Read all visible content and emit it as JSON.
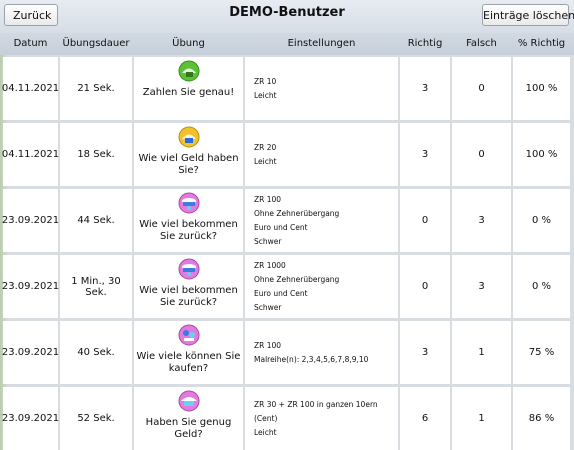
{
  "app": {
    "title": "DEMO-Benutzer",
    "back_label": "Zurück",
    "clear_label": "Einträge löschen"
  },
  "table": {
    "headers": {
      "date": "Datum",
      "duration": "Übungsdauer",
      "exercise": "Übung",
      "settings": "Einstellungen",
      "correct": "Richtig",
      "wrong": "Falsch",
      "percent": "% Richtig"
    },
    "rows": [
      {
        "date": "04.11.2021",
        "duration": "21 Sek.",
        "exercise": "Zahlen Sie genau!",
        "icon": "green-money-icon",
        "settings": [
          "ZR 10",
          "Leicht"
        ],
        "correct": "3",
        "wrong": "0",
        "percent": "100 %"
      },
      {
        "date": "04.11.2021",
        "duration": "18 Sek.",
        "exercise": "Wie viel Geld haben Sie?",
        "icon": "gold-money-icon",
        "settings": [
          "ZR 20",
          "Leicht"
        ],
        "correct": "3",
        "wrong": "0",
        "percent": "100 %"
      },
      {
        "date": "23.09.2021",
        "duration": "44 Sek.",
        "exercise": "Wie viel bekommen Sie zurück?",
        "icon": "change-money-icon",
        "settings": [
          "ZR 100",
          "Ohne Zehnerübergang",
          "Euro und Cent",
          "Schwer"
        ],
        "correct": "0",
        "wrong": "3",
        "percent": "0 %"
      },
      {
        "date": "23.09.2021",
        "duration": "1 Min., 30 Sek.",
        "exercise": "Wie viel bekommen Sie zurück?",
        "icon": "change-money-icon",
        "settings": [
          "ZR 1000",
          "Ohne Zehnerübergang",
          "Euro und Cent",
          "Schwer"
        ],
        "correct": "0",
        "wrong": "3",
        "percent": "0 %"
      },
      {
        "date": "23.09.2021",
        "duration": "40 Sek.",
        "exercise": "Wie viele können Sie kaufen?",
        "icon": "shopping-icon",
        "settings": [
          "ZR 100",
          "Malreihe(n): 2,3,4,5,6,7,8,9,10"
        ],
        "correct": "3",
        "wrong": "1",
        "percent": "75 %"
      },
      {
        "date": "23.09.2021",
        "duration": "52 Sek.",
        "exercise": "Haben Sie genug Geld?",
        "icon": "wallet-icon",
        "settings": [
          "ZR 30 + ZR 100 in ganzen 10ern (Cent)",
          "Leicht"
        ],
        "correct": "6",
        "wrong": "1",
        "percent": "86 %"
      }
    ]
  }
}
